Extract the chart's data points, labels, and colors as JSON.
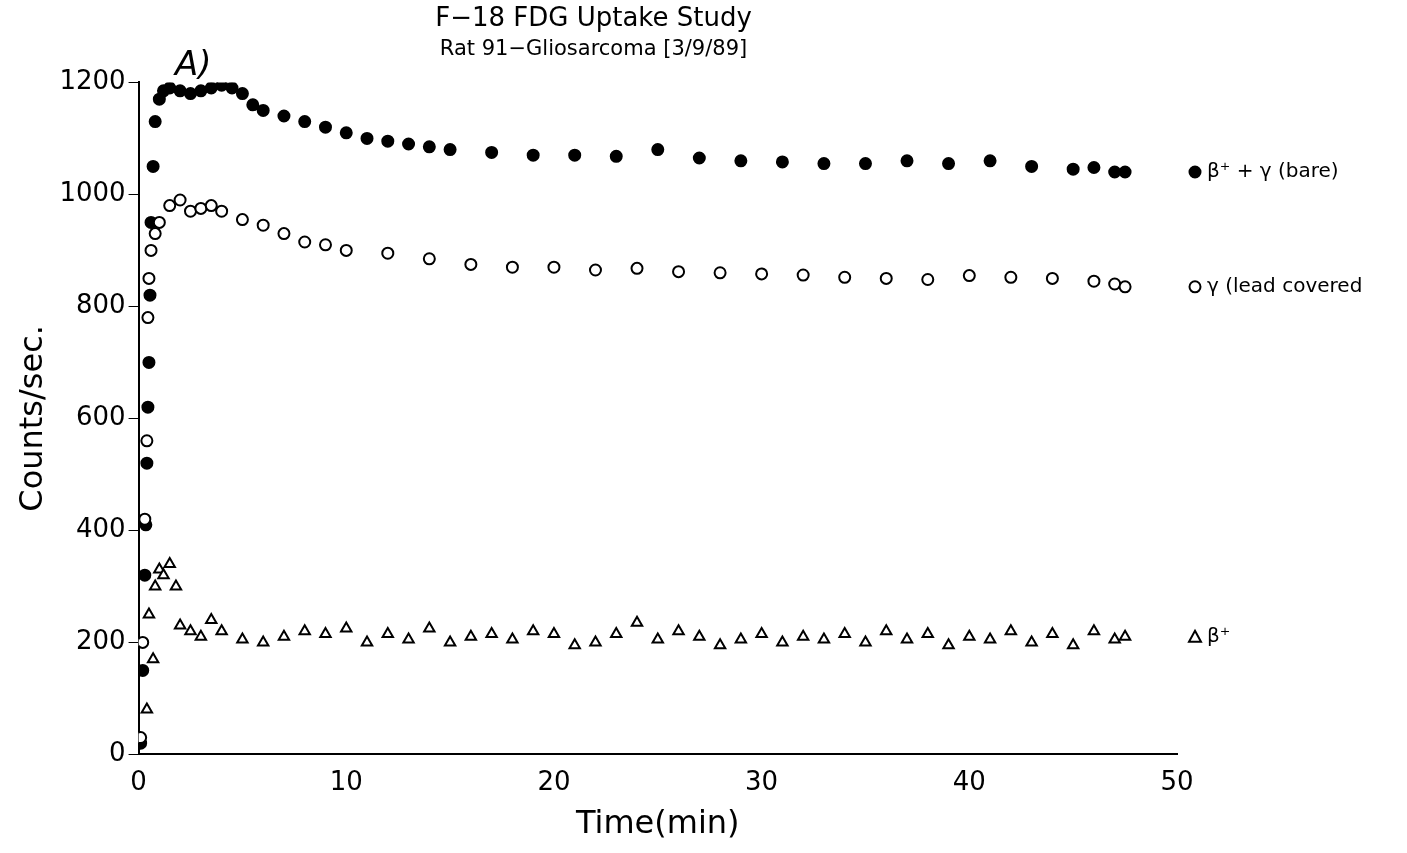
{
  "chart_data": {
    "type": "scatter",
    "title": "F−18 FDG Uptake Study",
    "subtitle": "Rat 91−Gliosarcoma [3/9/89]",
    "xlabel": "Time(min)",
    "ylabel": "Counts/sec.",
    "annotations": [
      "A)"
    ],
    "xlim": [
      0,
      50
    ],
    "xticks": [
      0,
      10,
      20,
      30,
      40,
      50
    ],
    "ylim": [
      0,
      1200
    ],
    "yticks": [
      0,
      200,
      400,
      600,
      800,
      1000,
      1200
    ],
    "grid": false,
    "legend": "right",
    "series": [
      {
        "name": "β⁺ + γ (bare)",
        "color": "#000000",
        "marker": "circle",
        "x": [
          0.1,
          0.2,
          0.3,
          0.35,
          0.4,
          0.45,
          0.5,
          0.55,
          0.6,
          0.7,
          0.8,
          1.0,
          1.2,
          1.5,
          2,
          2.5,
          3,
          3.5,
          4,
          4.5,
          5,
          5.5,
          6,
          7,
          8,
          9,
          10,
          11,
          12,
          13,
          14,
          15,
          17,
          19,
          21,
          23,
          25,
          27,
          29,
          31,
          33,
          35,
          37,
          39,
          41,
          43,
          45,
          46,
          47,
          47.5
        ],
        "values": [
          20,
          150,
          320,
          410,
          520,
          620,
          700,
          820,
          950,
          1050,
          1130,
          1170,
          1185,
          1190,
          1185,
          1180,
          1185,
          1190,
          1195,
          1190,
          1180,
          1160,
          1150,
          1140,
          1130,
          1120,
          1110,
          1100,
          1095,
          1090,
          1085,
          1080,
          1075,
          1070,
          1070,
          1068,
          1080,
          1065,
          1060,
          1058,
          1055,
          1055,
          1060,
          1055,
          1060,
          1050,
          1045,
          1048,
          1040,
          1040
        ]
      },
      {
        "name": "γ (lead covered",
        "color": "#000000",
        "marker": "circle",
        "x": [
          0.1,
          0.2,
          0.3,
          0.4,
          0.45,
          0.5,
          0.6,
          0.8,
          1.0,
          1.5,
          2,
          2.5,
          3,
          3.5,
          4,
          5,
          6,
          7,
          8,
          9,
          10,
          12,
          14,
          16,
          18,
          20,
          22,
          24,
          26,
          28,
          30,
          32,
          34,
          36,
          38,
          40,
          42,
          44,
          46,
          47,
          47.5
        ],
        "values": [
          30,
          200,
          420,
          560,
          780,
          850,
          900,
          930,
          950,
          980,
          990,
          970,
          975,
          980,
          970,
          955,
          945,
          930,
          915,
          910,
          900,
          895,
          885,
          875,
          870,
          870,
          865,
          868,
          862,
          860,
          858,
          856,
          852,
          850,
          848,
          855,
          852,
          850,
          845,
          840,
          835
        ]
      },
      {
        "name": "β⁺",
        "color": "#000000",
        "marker": "triangle",
        "x": [
          0.4,
          0.7,
          0.5,
          0.8,
          1.0,
          1.2,
          1.5,
          1.8,
          2.0,
          2.5,
          3,
          3.5,
          4,
          5,
          6,
          7,
          8,
          9,
          10,
          11,
          12,
          13,
          14,
          15,
          16,
          17,
          18,
          19,
          20,
          21,
          22,
          23,
          24,
          25,
          26,
          27,
          28,
          29,
          30,
          31,
          32,
          33,
          34,
          35,
          36,
          37,
          38,
          39,
          40,
          41,
          42,
          43,
          44,
          45,
          46,
          47,
          47.5
        ],
        "values": [
          80,
          170,
          250,
          300,
          330,
          320,
          340,
          300,
          230,
          220,
          210,
          240,
          220,
          205,
          200,
          210,
          220,
          215,
          225,
          200,
          215,
          205,
          225,
          200,
          210,
          215,
          205,
          220,
          215,
          195,
          200,
          215,
          235,
          205,
          220,
          210,
          195,
          205,
          215,
          200,
          210,
          205,
          215,
          200,
          220,
          205,
          215,
          195,
          210,
          205,
          220,
          200,
          215,
          195,
          220,
          205,
          210
        ]
      }
    ]
  }
}
